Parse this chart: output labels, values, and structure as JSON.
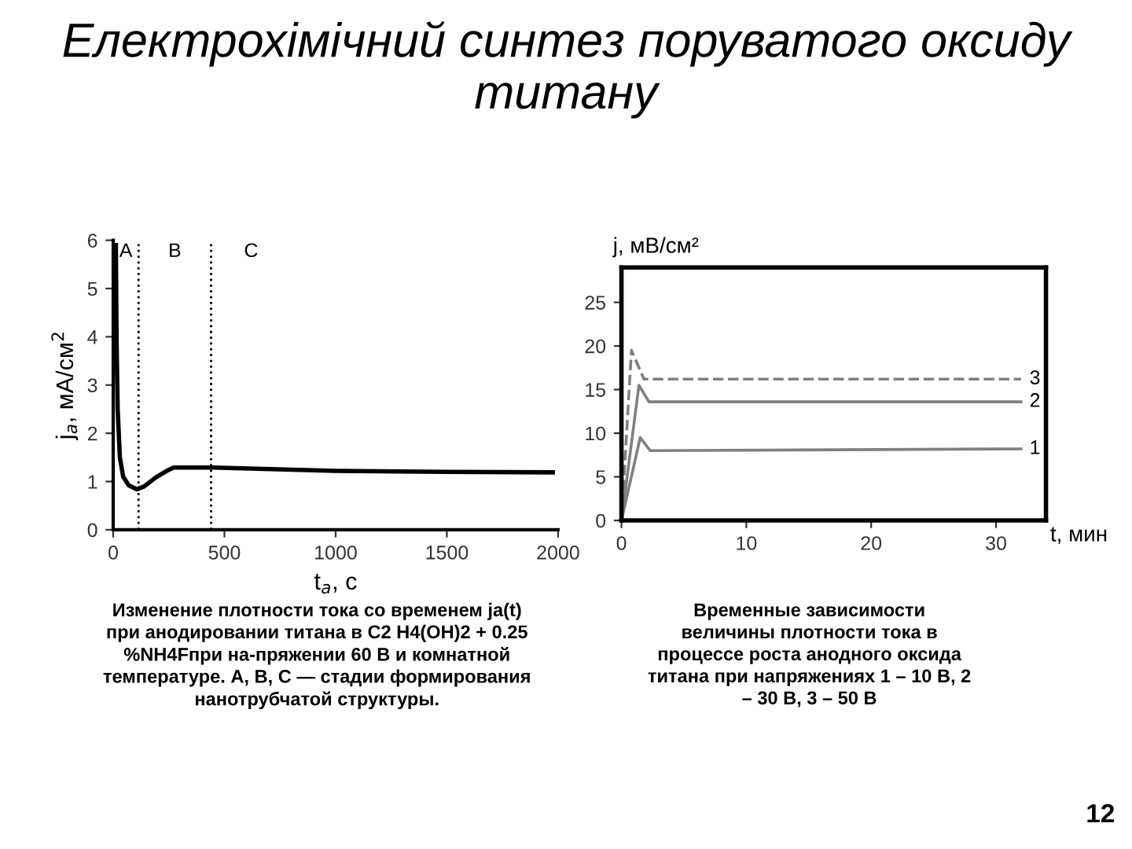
{
  "chart_data": [
    {
      "type": "line",
      "title": "Електрохімічний синтез поруватого оксиду\nтитану",
      "xlabel": "t$_{a}$, с",
      "ylabel": "j$_{a}$, мА/см$^{2}$",
      "x": [
        12,
        15,
        20,
        30,
        45,
        70,
        107,
        140,
        190,
        240,
        272,
        450,
        1000,
        1500,
        1976
      ],
      "series": [
        {
          "color": "#000000",
          "values": [
            5.9,
            4.0,
            2.5,
            1.5,
            1.1,
            0.92,
            0.84,
            0.9,
            1.08,
            1.22,
            1.29,
            1.29,
            1.22,
            1.2,
            1.19
          ]
        }
      ],
      "xlim": [
        0,
        2000
      ],
      "ylim": [
        0,
        6
      ],
      "xticks": [
        0,
        500,
        1000,
        1500,
        2000
      ],
      "yticks": [
        0,
        1,
        2,
        3,
        4,
        5,
        6
      ],
      "ref_lines": [
        {
          "axis": "x",
          "value": 114,
          "color": "#000000",
          "line_style": "dotted"
        },
        {
          "axis": "x",
          "value": 440,
          "color": "#000000",
          "line_style": "dotted"
        }
      ],
      "annotations": [
        "A",
        "B",
        "C",
        "Изменение плотности тока со временем ja(t)\nпри анодировании титана в C2 H4(OH)2 + 0.25\n%NH4Fпри на-пряжении 60 В и комнатной\nтемпературе. А, В, С — стадии формирования\nнанотрубчатой структуры."
      ],
      "grid": false,
      "legend": false,
      "line_style": "solid"
    },
    {
      "type": "line",
      "xlabel": "t, мин",
      "ylabel": "j, мВ/см²",
      "series": [
        {
          "name": "1",
          "color": "#808080",
          "x": [
            0,
            1.5,
            2.3,
            32
          ],
          "values": [
            0,
            9.5,
            8.0,
            8.2
          ]
        },
        {
          "name": "2",
          "color": "#808080",
          "x": [
            0,
            1.4,
            2.2,
            32
          ],
          "values": [
            0,
            15.5,
            13.6,
            13.6
          ]
        },
        {
          "name": "3",
          "color": "#808080",
          "x": [
            0,
            0.8,
            1.8,
            32
          ],
          "values": [
            0,
            19.5,
            16.2,
            16.2
          ],
          "line_style": "dashed"
        }
      ],
      "xlim": [
        0,
        34
      ],
      "ylim": [
        0,
        29
      ],
      "xticks": [
        0,
        10,
        20,
        30
      ],
      "yticks": [
        0,
        5,
        10,
        15,
        20,
        25
      ],
      "annotations": [
        "Временные зависимости\nвеличины плотности тока в\nпроцессе роста анодного оксида\nтитана при напряжениях 1 – 10 В, 2\n– 30 В, 3 – 50 В",
        "12"
      ],
      "grid": false,
      "legend": false,
      "line_style": "solid"
    }
  ]
}
